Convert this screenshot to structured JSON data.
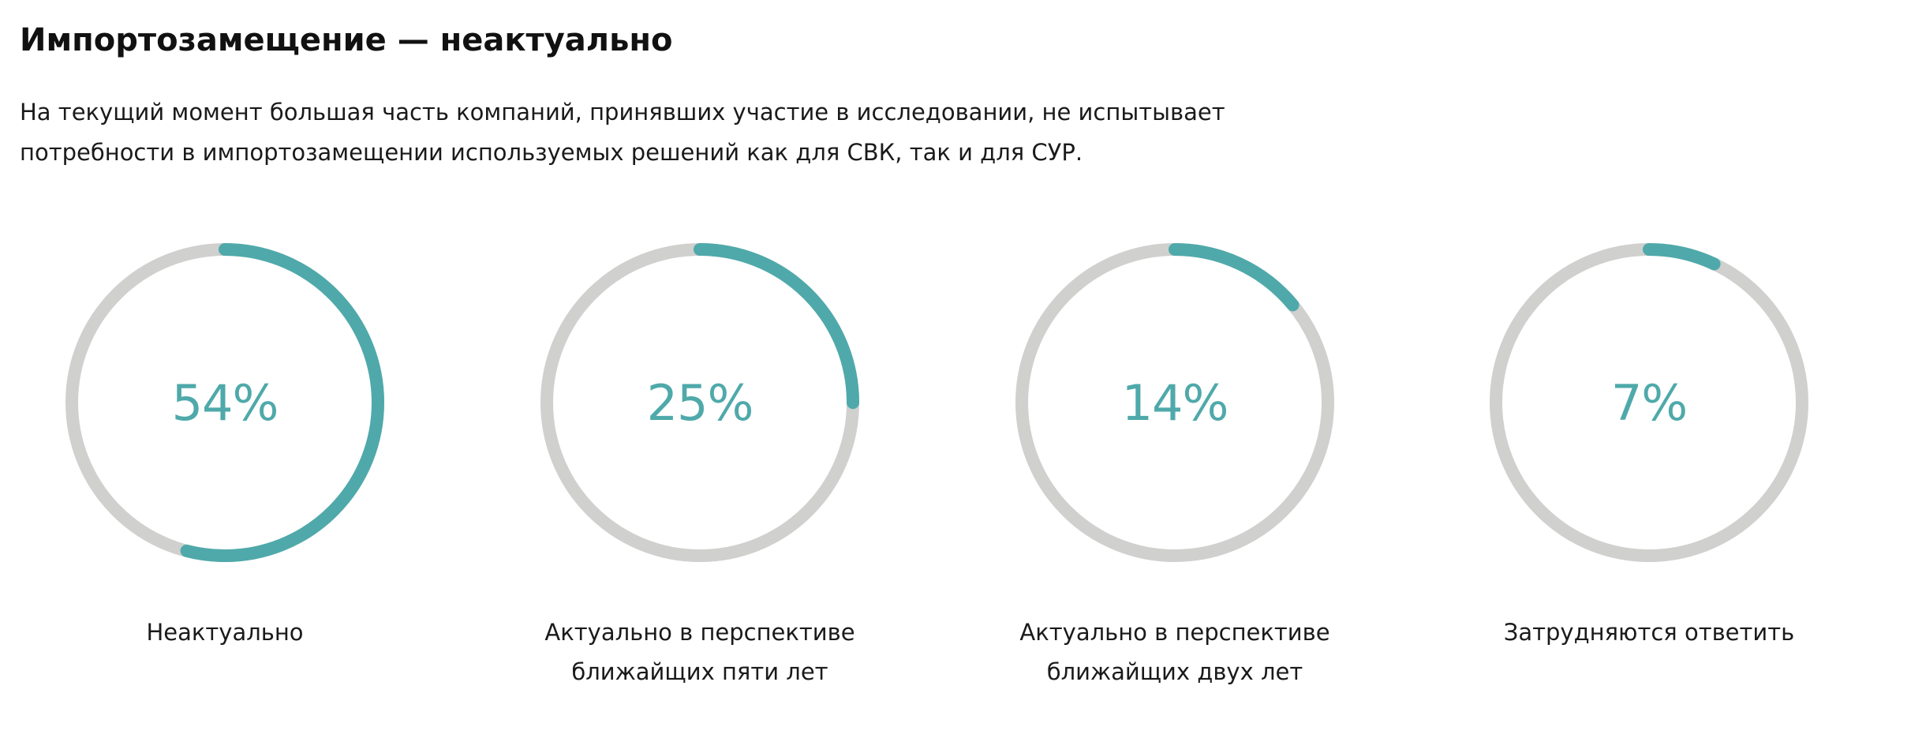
{
  "title": "Импортозамещение — неактуально",
  "lead": {
    "line1": "На текущий момент большая часть компаний, принявших участие в исследовании, не испытывает",
    "line2": "потребности в импортозамещении используемых решений как для СВК, так и для СУР."
  },
  "colors": {
    "accent": "#4fa9aa",
    "track": "#d0d0cf",
    "text": "#1a1a1a"
  },
  "chart_data": {
    "type": "pie",
    "style": "progress-rings",
    "unit": "%",
    "categories": [
      "Неактуально",
      "Актуально в перспективе ближайщих пяти лет",
      "Актуально в перспективе ближайщих двух лет",
      "Затрудняются ответить"
    ],
    "values": [
      54,
      25,
      14,
      7
    ],
    "value_labels": [
      "54%",
      "25%",
      "14%",
      "7%"
    ],
    "caption_lines": [
      [
        "Неактуально"
      ],
      [
        "Актуально в перспективе",
        "ближайщих пяти лет"
      ],
      [
        "Актуально в перспективе",
        "ближайщих двух лет"
      ],
      [
        "Затрудняются ответить"
      ]
    ]
  }
}
